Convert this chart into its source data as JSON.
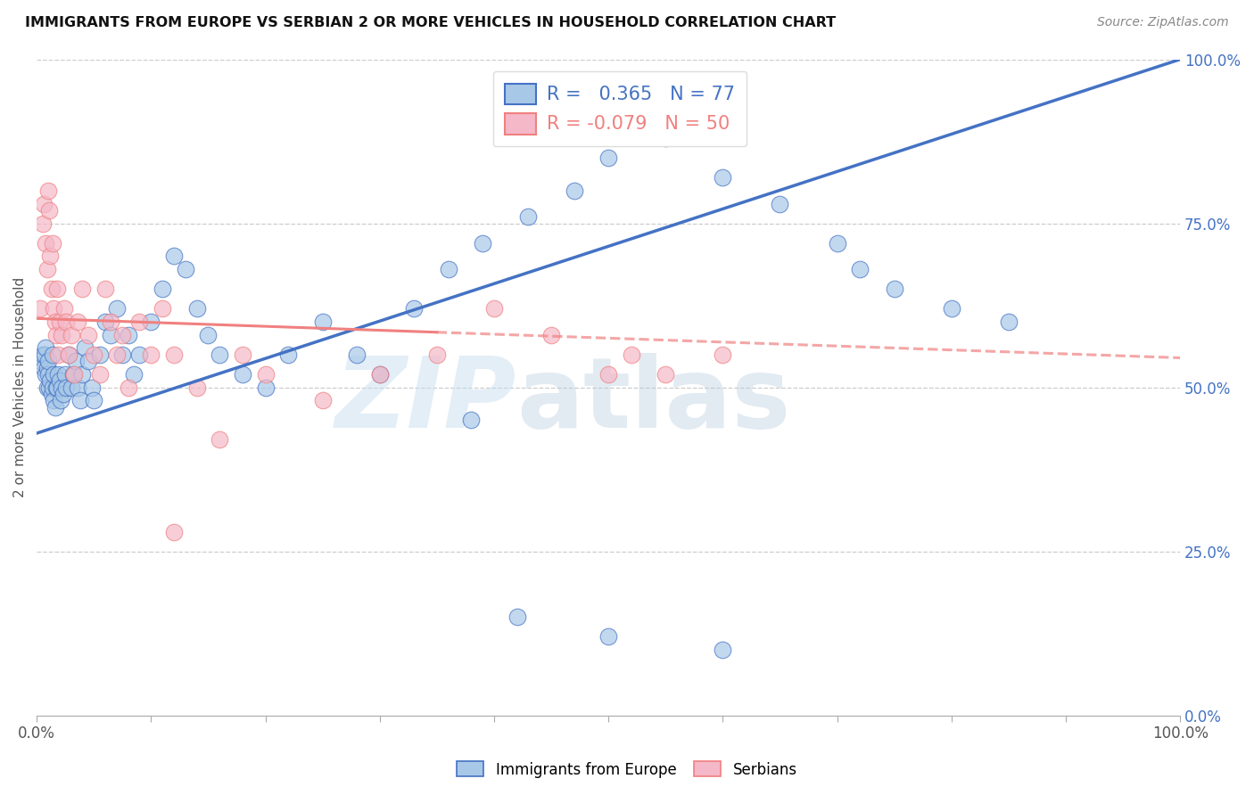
{
  "title": "IMMIGRANTS FROM EUROPE VS SERBIAN 2 OR MORE VEHICLES IN HOUSEHOLD CORRELATION CHART",
  "source": "Source: ZipAtlas.com",
  "ylabel": "2 or more Vehicles in Household",
  "xlim": [
    0,
    1
  ],
  "ylim": [
    0,
    1
  ],
  "xticks": [
    0,
    0.1,
    0.2,
    0.3,
    0.4,
    0.5,
    0.6,
    0.7,
    0.8,
    0.9,
    1.0
  ],
  "yticks_right": [
    0.0,
    0.25,
    0.5,
    0.75,
    1.0
  ],
  "ytick_labels_right": [
    "0.0%",
    "25.0%",
    "50.0%",
    "75.0%",
    "100.0%"
  ],
  "legend_labels": [
    "Immigrants from Europe",
    "Serbians"
  ],
  "r_europe": 0.365,
  "n_europe": 77,
  "r_serbian": -0.079,
  "n_serbian": 50,
  "color_europe": "#a8c8e8",
  "color_serbian": "#f4b8c8",
  "color_europe_line": "#4472C4",
  "color_serbian_line": "#F08080",
  "background_color": "#ffffff",
  "grid_color": "#cccccc",
  "eu_intercept": 0.43,
  "eu_slope": 0.57,
  "sr_intercept": 0.605,
  "sr_slope": -0.06,
  "eu_x": [
    0.003,
    0.005,
    0.006,
    0.007,
    0.008,
    0.008,
    0.009,
    0.009,
    0.01,
    0.01,
    0.011,
    0.012,
    0.013,
    0.014,
    0.014,
    0.015,
    0.015,
    0.016,
    0.017,
    0.018,
    0.019,
    0.02,
    0.021,
    0.022,
    0.023,
    0.025,
    0.026,
    0.028,
    0.03,
    0.032,
    0.034,
    0.036,
    0.038,
    0.04,
    0.042,
    0.045,
    0.048,
    0.05,
    0.055,
    0.06,
    0.065,
    0.07,
    0.075,
    0.08,
    0.085,
    0.09,
    0.1,
    0.11,
    0.12,
    0.13,
    0.14,
    0.15,
    0.16,
    0.18,
    0.2,
    0.22,
    0.25,
    0.28,
    0.3,
    0.33,
    0.36,
    0.39,
    0.43,
    0.47,
    0.5,
    0.55,
    0.6,
    0.65,
    0.7,
    0.72,
    0.75,
    0.8,
    0.85,
    0.38,
    0.42,
    0.5,
    0.6
  ],
  "eu_y": [
    0.54,
    0.55,
    0.53,
    0.55,
    0.56,
    0.52,
    0.5,
    0.53,
    0.52,
    0.54,
    0.5,
    0.51,
    0.49,
    0.5,
    0.55,
    0.48,
    0.52,
    0.47,
    0.5,
    0.5,
    0.52,
    0.51,
    0.48,
    0.5,
    0.49,
    0.52,
    0.5,
    0.55,
    0.5,
    0.52,
    0.54,
    0.5,
    0.48,
    0.52,
    0.56,
    0.54,
    0.5,
    0.48,
    0.55,
    0.6,
    0.58,
    0.62,
    0.55,
    0.58,
    0.52,
    0.55,
    0.6,
    0.65,
    0.7,
    0.68,
    0.62,
    0.58,
    0.55,
    0.52,
    0.5,
    0.55,
    0.6,
    0.55,
    0.52,
    0.62,
    0.68,
    0.72,
    0.76,
    0.8,
    0.85,
    0.88,
    0.82,
    0.78,
    0.72,
    0.68,
    0.65,
    0.62,
    0.6,
    0.45,
    0.15,
    0.12,
    0.1
  ],
  "sr_x": [
    0.003,
    0.005,
    0.006,
    0.008,
    0.009,
    0.01,
    0.011,
    0.012,
    0.013,
    0.014,
    0.015,
    0.016,
    0.017,
    0.018,
    0.019,
    0.02,
    0.022,
    0.024,
    0.026,
    0.028,
    0.03,
    0.033,
    0.036,
    0.04,
    0.045,
    0.05,
    0.055,
    0.06,
    0.065,
    0.07,
    0.075,
    0.08,
    0.09,
    0.1,
    0.11,
    0.12,
    0.14,
    0.16,
    0.18,
    0.2,
    0.25,
    0.3,
    0.35,
    0.4,
    0.45,
    0.5,
    0.52,
    0.55,
    0.6,
    0.12
  ],
  "sr_y": [
    0.62,
    0.75,
    0.78,
    0.72,
    0.68,
    0.8,
    0.77,
    0.7,
    0.65,
    0.72,
    0.62,
    0.6,
    0.58,
    0.65,
    0.55,
    0.6,
    0.58,
    0.62,
    0.6,
    0.55,
    0.58,
    0.52,
    0.6,
    0.65,
    0.58,
    0.55,
    0.52,
    0.65,
    0.6,
    0.55,
    0.58,
    0.5,
    0.6,
    0.55,
    0.62,
    0.55,
    0.5,
    0.42,
    0.55,
    0.52,
    0.48,
    0.52,
    0.55,
    0.62,
    0.58,
    0.52,
    0.55,
    0.52,
    0.55,
    0.28
  ]
}
